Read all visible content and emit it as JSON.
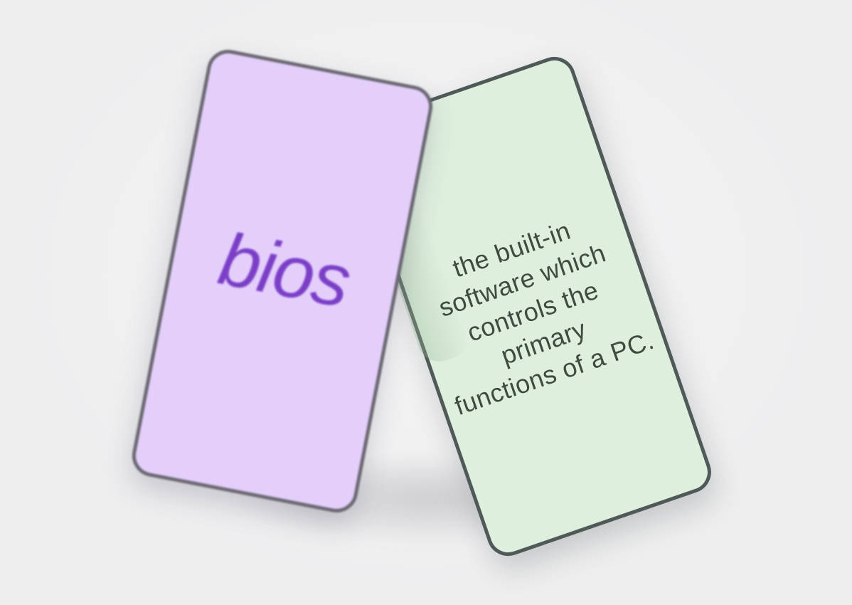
{
  "colors": {
    "background": "#eeeeef",
    "term_card_fill": "#e4cffb",
    "term_text": "#7b3fc7",
    "definition_card_fill": "#deefde",
    "definition_text": "#3f4a40"
  },
  "flashcards": {
    "term": "bios",
    "definition": "the built-in\nsoftware which\ncontrols the primary\nfunctions of a PC."
  }
}
